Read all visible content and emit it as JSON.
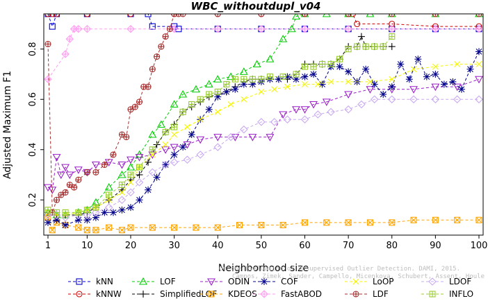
{
  "chart_data": {
    "type": "line",
    "title": "WBC_withoutdupl_v04",
    "xlabel": "Neighborhood size",
    "ylabel": "Adjusted Maximum F1",
    "xlim": [
      1,
      100
    ],
    "ylim": [
      0.06,
      0.94
    ],
    "x_ticks": [
      1,
      10,
      20,
      30,
      40,
      50,
      60,
      70,
      80,
      90,
      100
    ],
    "y_ticks": [
      0.2,
      0.4,
      0.6,
      0.8
    ],
    "x_tick_labels": [
      "1",
      "10",
      "20",
      "30",
      "40",
      "50",
      "60",
      "70",
      "80",
      "90",
      "100"
    ],
    "y_tick_labels": [
      "0.2",
      "0.4",
      "0.6",
      "0.8"
    ],
    "grid": false,
    "legend_position": "bottom",
    "watermark": [
      "Campos, Zimek, Sander, Campello, Micenkova, Schubert, Assent, Houle",
      "On the Evaluation of Unsupervised Outlier Detection. DAMI, 2015."
    ],
    "series": [
      {
        "name": "kNN",
        "color": "#0000cd",
        "marker": "square",
        "x": [
          1,
          2,
          3,
          10,
          20,
          24,
          25,
          30,
          31,
          40,
          50,
          60,
          70,
          80,
          90,
          100
        ],
        "y": [
          0.94,
          0.89,
          0.94,
          0.94,
          0.94,
          0.94,
          0.89,
          0.89,
          0.88,
          0.88,
          0.88,
          0.88,
          0.88,
          0.88,
          0.88,
          0.88
        ]
      },
      {
        "name": "kNNW",
        "color": "#cd0000",
        "marker": "circle",
        "x": [
          1,
          2,
          3,
          10,
          20,
          30,
          40,
          50,
          60,
          70,
          71,
          72,
          80,
          90,
          100
        ],
        "y": [
          0.94,
          0.94,
          0.94,
          0.94,
          0.94,
          0.94,
          0.94,
          0.94,
          0.94,
          0.94,
          0.94,
          0.9,
          0.9,
          0.89,
          0.89
        ]
      },
      {
        "name": "LOF",
        "color": "#00cd00",
        "marker": "triangle",
        "x": [
          1,
          3,
          5,
          8,
          10,
          12,
          15,
          18,
          20,
          22,
          25,
          27,
          30,
          32,
          35,
          38,
          40,
          43,
          46,
          49,
          52,
          55,
          57,
          58,
          60,
          65,
          70,
          75,
          80,
          90,
          100
        ],
        "y": [
          0.15,
          0.14,
          0.14,
          0.15,
          0.16,
          0.19,
          0.25,
          0.3,
          0.33,
          0.38,
          0.46,
          0.5,
          0.58,
          0.62,
          0.64,
          0.66,
          0.68,
          0.69,
          0.71,
          0.74,
          0.76,
          0.84,
          0.88,
          0.93,
          0.94,
          0.94,
          0.94,
          0.94,
          0.94,
          0.94,
          0.94
        ]
      },
      {
        "name": "SimplifiedLOF",
        "color": "#000000",
        "marker": "plus",
        "x": [
          1,
          3,
          5,
          8,
          10,
          12,
          15,
          18,
          20,
          22,
          24,
          26,
          28,
          30,
          32,
          34,
          36,
          38,
          40,
          42,
          44,
          46,
          48,
          50,
          52,
          54,
          56,
          58,
          60,
          62,
          64,
          66,
          68,
          70,
          72,
          73,
          74,
          76,
          78,
          80
        ],
        "y": [
          0.15,
          0.14,
          0.14,
          0.14,
          0.15,
          0.17,
          0.2,
          0.24,
          0.28,
          0.3,
          0.35,
          0.42,
          0.47,
          0.5,
          0.55,
          0.57,
          0.59,
          0.61,
          0.62,
          0.63,
          0.65,
          0.67,
          0.68,
          0.68,
          0.68,
          0.68,
          0.68,
          0.7,
          0.74,
          0.74,
          0.74,
          0.74,
          0.76,
          0.81,
          0.81,
          0.85,
          0.81,
          0.81,
          0.81,
          0.81
        ]
      },
      {
        "name": "ODIN",
        "color": "#9a1fc8",
        "marker": "triangle-down",
        "x": [
          1,
          2,
          3,
          4,
          5,
          6,
          8,
          10,
          12,
          15,
          18,
          20,
          22,
          25,
          28,
          30,
          33,
          36,
          40,
          44,
          48,
          52,
          55,
          58,
          60,
          62,
          65,
          70,
          75,
          80,
          85,
          90,
          95,
          100
        ],
        "y": [
          0.25,
          0.24,
          0.37,
          0.3,
          0.33,
          0.3,
          0.32,
          0.31,
          0.34,
          0.35,
          0.34,
          0.36,
          0.37,
          0.38,
          0.4,
          0.41,
          0.42,
          0.44,
          0.45,
          0.45,
          0.45,
          0.45,
          0.54,
          0.56,
          0.56,
          0.58,
          0.59,
          0.62,
          0.64,
          0.64,
          0.64,
          0.65,
          0.65,
          0.68
        ]
      },
      {
        "name": "KDEOS",
        "color": "#ffa500",
        "marker": "square-x",
        "x": [
          1,
          2,
          3,
          5,
          8,
          10,
          12,
          15,
          18,
          20,
          25,
          30,
          35,
          40,
          45,
          50,
          55,
          60,
          65,
          70,
          75,
          80,
          85,
          90,
          95,
          100
        ],
        "y": [
          0.13,
          0.08,
          0.11,
          0.1,
          0.09,
          0.08,
          0.08,
          0.09,
          0.08,
          0.09,
          0.09,
          0.09,
          0.09,
          0.09,
          0.1,
          0.1,
          0.1,
          0.11,
          0.11,
          0.11,
          0.11,
          0.11,
          0.12,
          0.12,
          0.12,
          0.12
        ]
      },
      {
        "name": "COF",
        "color": "#00008b",
        "marker": "star",
        "x": [
          1,
          3,
          5,
          8,
          10,
          12,
          14,
          16,
          18,
          20,
          22,
          24,
          26,
          28,
          30,
          32,
          34,
          36,
          38,
          40,
          42,
          44,
          46,
          48,
          50,
          52,
          54,
          56,
          58,
          60,
          62,
          64,
          66,
          68,
          70,
          72,
          74,
          76,
          78,
          80,
          82,
          84,
          86,
          88,
          90,
          92,
          94,
          96,
          98,
          100
        ],
        "y": [
          0.11,
          0.12,
          0.1,
          0.12,
          0.12,
          0.13,
          0.15,
          0.15,
          0.16,
          0.17,
          0.2,
          0.24,
          0.29,
          0.34,
          0.38,
          0.41,
          0.46,
          0.52,
          0.56,
          0.61,
          0.63,
          0.64,
          0.66,
          0.66,
          0.67,
          0.68,
          0.68,
          0.69,
          0.68,
          0.69,
          0.7,
          0.66,
          0.73,
          0.73,
          0.71,
          0.67,
          0.72,
          0.66,
          0.62,
          0.65,
          0.74,
          0.68,
          0.76,
          0.69,
          0.7,
          0.66,
          0.67,
          0.64,
          0.72,
          0.79
        ]
      },
      {
        "name": "FastABOD",
        "color": "#ff9ef0",
        "marker": "diamond",
        "x": [
          1,
          5,
          6,
          7,
          8,
          10,
          20,
          30,
          40,
          50,
          60,
          70,
          80,
          90,
          100
        ],
        "y": [
          0.68,
          0.78,
          0.84,
          0.88,
          0.88,
          0.88,
          0.88,
          0.88,
          0.88,
          0.88,
          0.88,
          0.88,
          0.88,
          0.88,
          0.88
        ]
      },
      {
        "name": "LoOP",
        "color": "#f5f500",
        "marker": "x",
        "x": [
          1,
          3,
          5,
          8,
          10,
          12,
          15,
          18,
          20,
          22,
          25,
          28,
          30,
          33,
          36,
          40,
          43,
          46,
          50,
          53,
          56,
          60,
          63,
          66,
          70,
          75,
          80,
          85,
          90,
          95,
          100
        ],
        "y": [
          0.15,
          0.14,
          0.14,
          0.15,
          0.16,
          0.17,
          0.2,
          0.23,
          0.27,
          0.33,
          0.38,
          0.42,
          0.46,
          0.49,
          0.52,
          0.55,
          0.58,
          0.6,
          0.63,
          0.64,
          0.65,
          0.66,
          0.66,
          0.67,
          0.67,
          0.67,
          0.68,
          0.72,
          0.73,
          0.74,
          0.74
        ]
      },
      {
        "name": "LDF",
        "color": "#a52a2a",
        "marker": "circle-plus",
        "x": [
          1,
          2,
          3,
          4,
          5,
          6,
          7,
          8,
          10,
          12,
          14,
          16,
          18,
          19,
          20,
          21,
          22,
          23,
          24,
          25,
          26,
          27,
          28,
          29,
          30,
          31,
          32,
          40,
          50,
          60,
          70,
          80,
          90,
          100
        ],
        "y": [
          0.82,
          0.15,
          0.2,
          0.22,
          0.23,
          0.26,
          0.25,
          0.28,
          0.31,
          0.31,
          0.34,
          0.38,
          0.46,
          0.45,
          0.56,
          0.57,
          0.59,
          0.65,
          0.65,
          0.72,
          0.77,
          0.81,
          0.85,
          0.88,
          0.94,
          0.94,
          0.94,
          0.94,
          0.94,
          0.94,
          0.94,
          0.94,
          0.94,
          0.94
        ]
      },
      {
        "name": "LDOF",
        "color": "#c8a8f0",
        "marker": "diamond-open",
        "x": [
          1,
          3,
          5,
          8,
          10,
          12,
          15,
          18,
          20,
          22,
          25,
          28,
          30,
          33,
          36,
          40,
          43,
          46,
          50,
          53,
          56,
          60,
          63,
          66,
          70,
          73,
          76,
          80,
          85,
          90,
          95,
          100
        ],
        "y": [
          0.14,
          0.14,
          0.13,
          0.14,
          0.14,
          0.15,
          0.17,
          0.2,
          0.23,
          0.27,
          0.31,
          0.34,
          0.35,
          0.36,
          0.38,
          0.41,
          0.45,
          0.48,
          0.51,
          0.51,
          0.52,
          0.52,
          0.54,
          0.55,
          0.56,
          0.58,
          0.6,
          0.6,
          0.6,
          0.6,
          0.6,
          0.6
        ]
      },
      {
        "name": "INFLO",
        "color": "#9acd32",
        "marker": "square-plus",
        "x": [
          1,
          3,
          5,
          8,
          10,
          12,
          15,
          18,
          20,
          22,
          25,
          28,
          30,
          32,
          34,
          36,
          38,
          40,
          42,
          44,
          46,
          48,
          50,
          52,
          55,
          58,
          60,
          62,
          64,
          66,
          68,
          70,
          72,
          74,
          76,
          78,
          80
        ],
        "y": [
          0.16,
          0.15,
          0.15,
          0.15,
          0.16,
          0.17,
          0.22,
          0.26,
          0.3,
          0.33,
          0.4,
          0.47,
          0.49,
          0.55,
          0.58,
          0.6,
          0.62,
          0.63,
          0.66,
          0.68,
          0.68,
          0.68,
          0.68,
          0.69,
          0.69,
          0.7,
          0.73,
          0.73,
          0.74,
          0.74,
          0.76,
          0.8,
          0.81,
          0.81,
          0.81,
          0.81,
          0.85
        ]
      }
    ]
  }
}
